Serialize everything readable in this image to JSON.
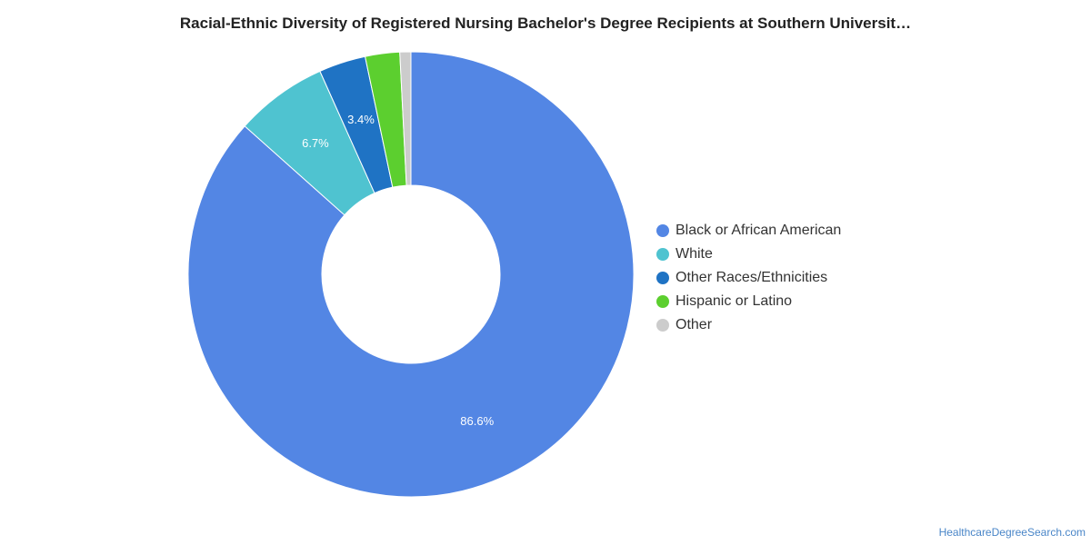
{
  "chart_data": {
    "type": "pie",
    "title": "Racial-Ethnic Diversity of Registered Nursing Bachelor's Degree Recipients at Southern Universit…",
    "donut": true,
    "legend_position": "right",
    "slices": [
      {
        "label": "Black or African American",
        "value": 86.6,
        "color": "#5386e4",
        "data_label": "86.6%"
      },
      {
        "label": "White",
        "value": 6.7,
        "color": "#4fc3d0",
        "data_label": "6.7%"
      },
      {
        "label": "Other Races/Ethnicities",
        "value": 3.4,
        "color": "#1f73c4",
        "data_label": "3.4%"
      },
      {
        "label": "Hispanic or Latino",
        "value": 2.5,
        "color": "#5ccf2f",
        "data_label": ""
      },
      {
        "label": "Other",
        "value": 0.8,
        "color": "#cccccc",
        "data_label": ""
      }
    ]
  },
  "source": "HealthcareDegreeSearch.com"
}
